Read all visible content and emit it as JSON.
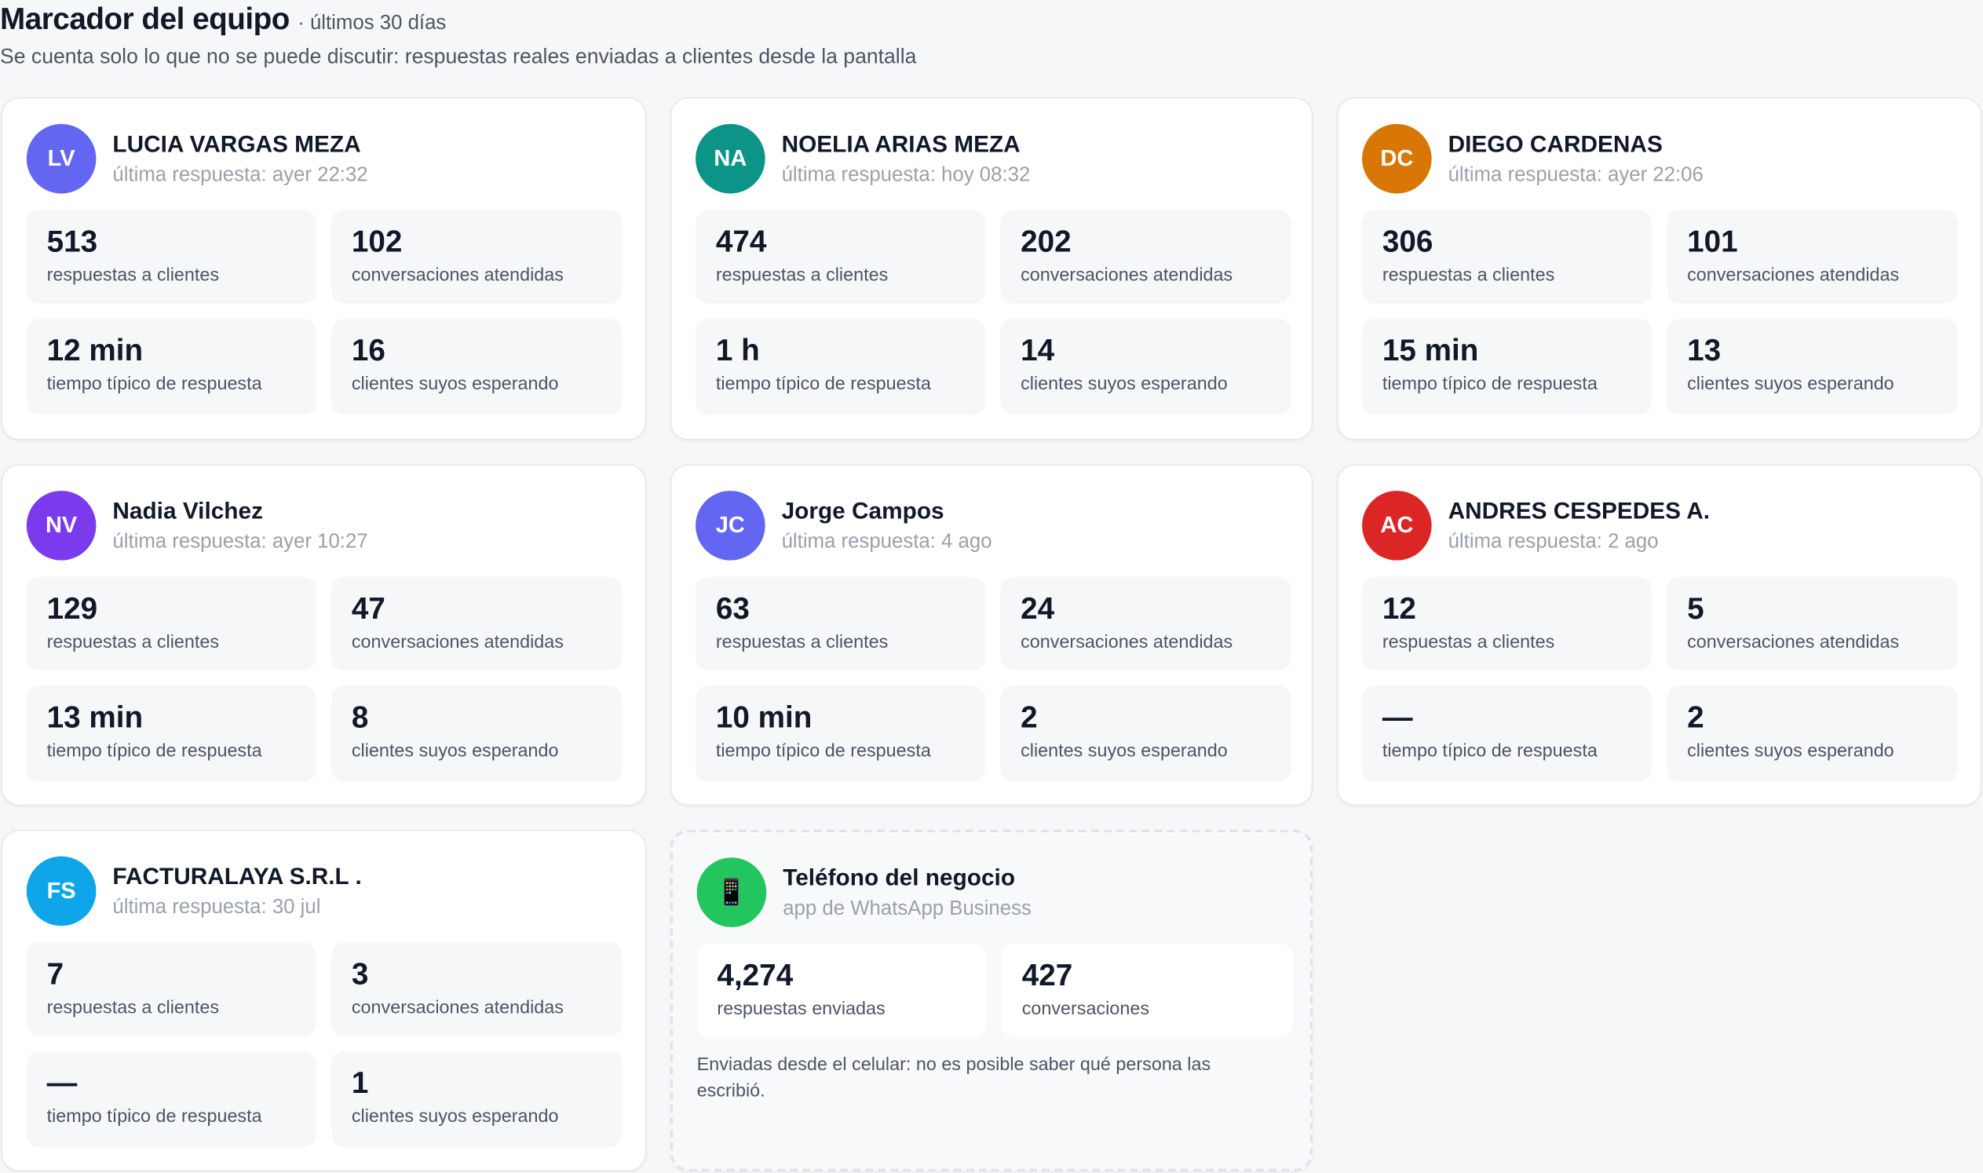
{
  "header": {
    "title": "Marcador del equipo",
    "period": "· últimos 30 días",
    "subtitle": "Se cuenta solo lo que no se puede discutir: respuestas reales enviadas a clientes desde la pantalla"
  },
  "labels": {
    "replies": "respuestas a clientes",
    "conversations": "conversaciones atendidas",
    "response_time": "tiempo típico de respuesta",
    "waiting": "clientes suyos esperando"
  },
  "agents": [
    {
      "initials": "LV",
      "name": "LUCIA VARGAS MEZA",
      "last": "última respuesta: ayer 22:32",
      "replies": "513",
      "conversations": "102",
      "response_time": "12 min",
      "waiting": "16",
      "color": "#6366f1"
    },
    {
      "initials": "NA",
      "name": "NOELIA ARIAS MEZA",
      "last": "última respuesta: hoy 08:32",
      "replies": "474",
      "conversations": "202",
      "response_time": "1 h",
      "waiting": "14",
      "color": "#0d9488"
    },
    {
      "initials": "DC",
      "name": "DIEGO CARDENAS",
      "last": "última respuesta: ayer 22:06",
      "replies": "306",
      "conversations": "101",
      "response_time": "15 min",
      "waiting": "13",
      "color": "#d97706"
    },
    {
      "initials": "NV",
      "name": "Nadia Vilchez",
      "last": "última respuesta: ayer 10:27",
      "replies": "129",
      "conversations": "47",
      "response_time": "13 min",
      "waiting": "8",
      "color": "#7c3aed"
    },
    {
      "initials": "JC",
      "name": "Jorge Campos",
      "last": "última respuesta: 4 ago",
      "replies": "63",
      "conversations": "24",
      "response_time": "10 min",
      "waiting": "2",
      "color": "#6366f1"
    },
    {
      "initials": "AC",
      "name": "ANDRES CESPEDES A.",
      "last": "última respuesta: 2 ago",
      "replies": "12",
      "conversations": "5",
      "response_time": "—",
      "waiting": "2",
      "color": "#dc2626"
    },
    {
      "initials": "FS",
      "name": "FACTURALAYA S.R.L .",
      "last": "última respuesta: 30 jul",
      "replies": "7",
      "conversations": "3",
      "response_time": "—",
      "waiting": "1",
      "color": "#0ea5e9"
    }
  ],
  "phone": {
    "icon": "mobile-phone-icon",
    "glyph": "📱",
    "name": "Teléfono del negocio",
    "sub": "app de WhatsApp Business",
    "sent": "4,274",
    "sent_label": "respuestas enviadas",
    "conversations": "427",
    "conversations_label": "conversaciones",
    "note": "Enviadas desde el celular: no es posible saber qué persona las escribió.",
    "color": "#22c55e"
  }
}
